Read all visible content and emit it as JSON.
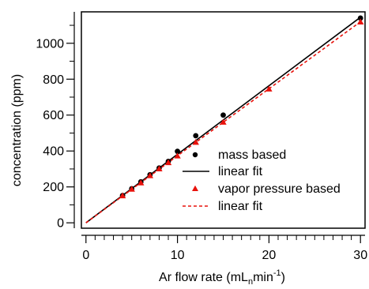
{
  "chart_data": {
    "type": "scatter",
    "xlabel": "Ar flow rate (mL",
    "xlabel_sub": "n",
    "xlabel_mid": "min",
    "xlabel_sup": "-1",
    "xlabel_end": ")",
    "ylabel": "concentration (ppm)",
    "xlim": [
      -0.5,
      30.5
    ],
    "ylim": [
      -30,
      1175
    ],
    "x_ticks": [
      0,
      10,
      20,
      30
    ],
    "x_minor_ticks": [
      1,
      2,
      3,
      4,
      5,
      6,
      7,
      8,
      9,
      11,
      12,
      13,
      14,
      15,
      16,
      17,
      18,
      19,
      21,
      22,
      23,
      24,
      25,
      26,
      27,
      28,
      29
    ],
    "y_ticks": [
      0,
      200,
      400,
      600,
      800,
      1000
    ],
    "y_minor_ticks": [
      100,
      300,
      500,
      700,
      900,
      1100
    ],
    "grid": false,
    "legend_position": "bottom-right",
    "series": [
      {
        "name": "mass based",
        "kind": "points",
        "marker": "circle",
        "color": "#000000",
        "x": [
          4,
          5,
          6,
          7,
          8,
          9,
          10,
          12,
          15,
          30
        ],
        "y": [
          152,
          190,
          228,
          268,
          305,
          342,
          398,
          485,
          600,
          1140
        ]
      },
      {
        "name": "linear fit",
        "kind": "line",
        "style": "solid",
        "color": "#000000",
        "x": [
          0,
          30
        ],
        "y": [
          0,
          1145
        ]
      },
      {
        "name": "vapor pressure based",
        "kind": "points",
        "marker": "triangle",
        "color": "#e8120c",
        "x": [
          4,
          5,
          6,
          7,
          8,
          9,
          10,
          12,
          15,
          20,
          30
        ],
        "y": [
          150,
          187,
          222,
          262,
          300,
          335,
          372,
          448,
          560,
          745,
          1118
        ]
      },
      {
        "name": "linear fit",
        "kind": "line",
        "style": "dashed",
        "color": "#e8120c",
        "x": [
          0,
          30
        ],
        "y": [
          0,
          1120
        ]
      }
    ]
  }
}
